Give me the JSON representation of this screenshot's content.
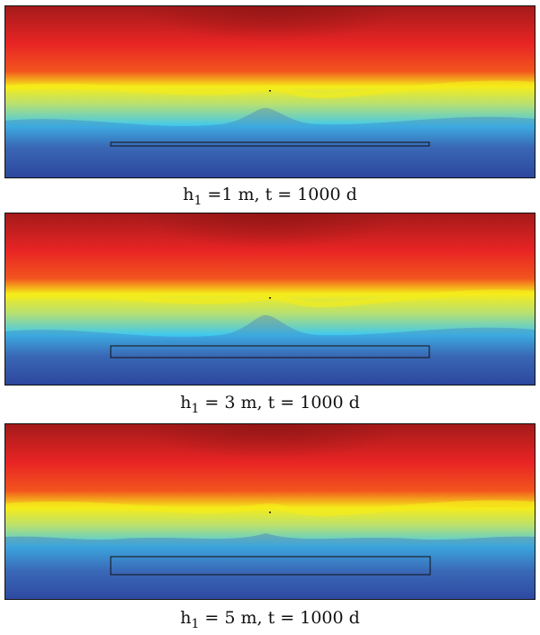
{
  "figure": {
    "panels": [
      {
        "caption_var": "h",
        "caption_sub": "1",
        "caption_rest": " =1 m, t = 1000 d"
      },
      {
        "caption_var": "h",
        "caption_sub": "1",
        "caption_rest": " = 3 m, t = 1000 d"
      },
      {
        "caption_var": "h",
        "caption_sub": "1",
        "caption_rest": " = 5 m, t = 1000 d"
      }
    ],
    "colors": {
      "top": "#a31a1a",
      "red": "#e82424",
      "orange": "#f58a1f",
      "yellow": "#f5ec1a",
      "cyan": "#3ec8f0",
      "blue": "#3a64b0",
      "bottom": "#26308c"
    }
  }
}
